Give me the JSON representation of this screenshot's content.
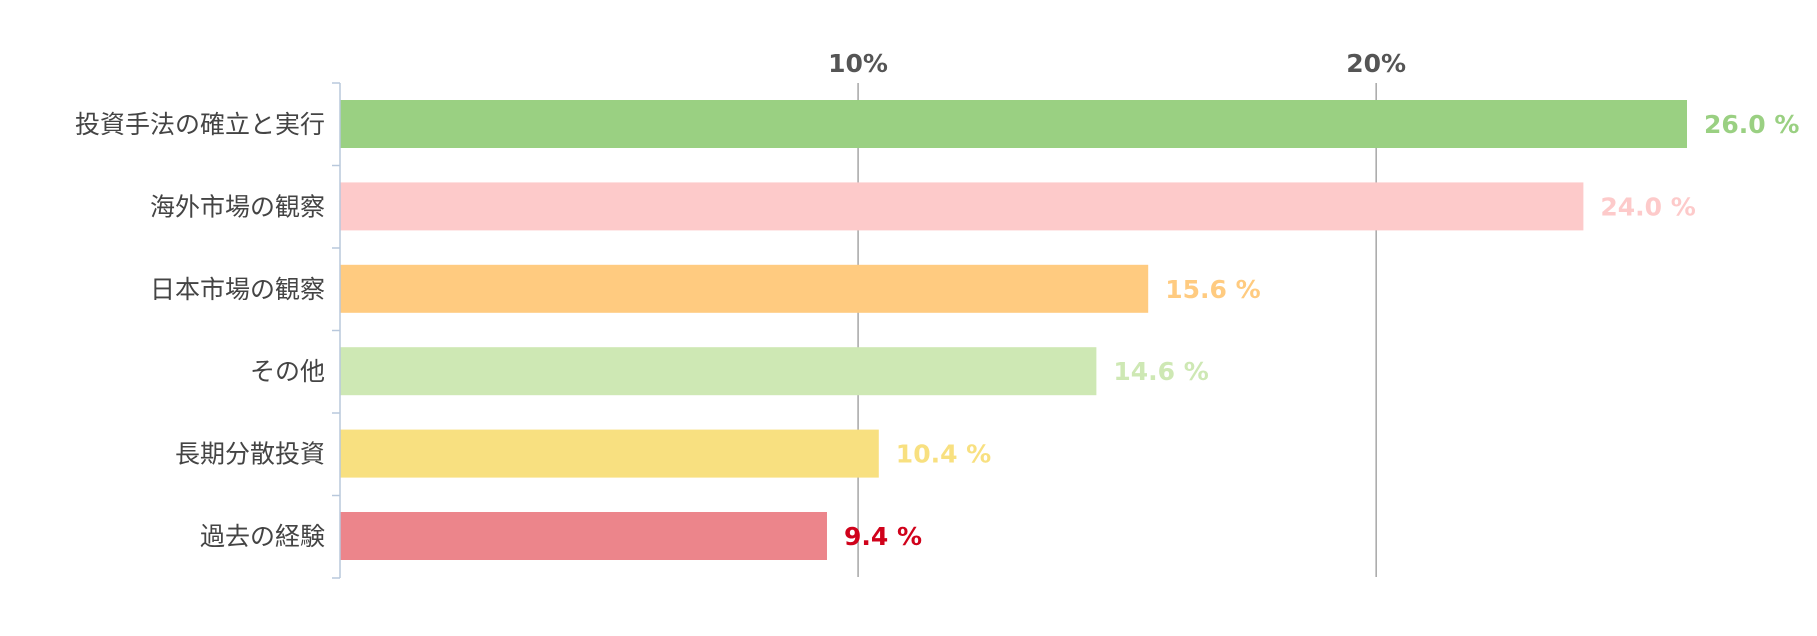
{
  "chart_data": {
    "type": "bar",
    "orientation": "horizontal",
    "categories": [
      "投資手法の確立と実行",
      "海外市場の観察",
      "日本市場の観察",
      "その他",
      "長期分散投資",
      "過去の経験"
    ],
    "values": [
      26.0,
      24.0,
      15.6,
      14.6,
      10.4,
      9.4
    ],
    "value_labels": [
      "26.0 %",
      "24.0 %",
      "15.6 %",
      "14.6 %",
      "10.4 %",
      "9.4 %"
    ],
    "bar_colors": [
      "#9ad082",
      "#fdcaca",
      "#ffcb80",
      "#cee8b4",
      "#f8e080",
      "#ec858b"
    ],
    "label_colors": [
      "#9ad082",
      "#fdcaca",
      "#ffcb80",
      "#cee8b4",
      "#f8e080",
      "#d0021b"
    ],
    "x_ticks": [
      10,
      20
    ],
    "x_tick_labels": [
      "10%",
      "20%"
    ],
    "xlim": [
      0,
      26
    ],
    "x_axis_position": "top",
    "grid": true,
    "title": "",
    "xlabel": "",
    "ylabel": ""
  }
}
